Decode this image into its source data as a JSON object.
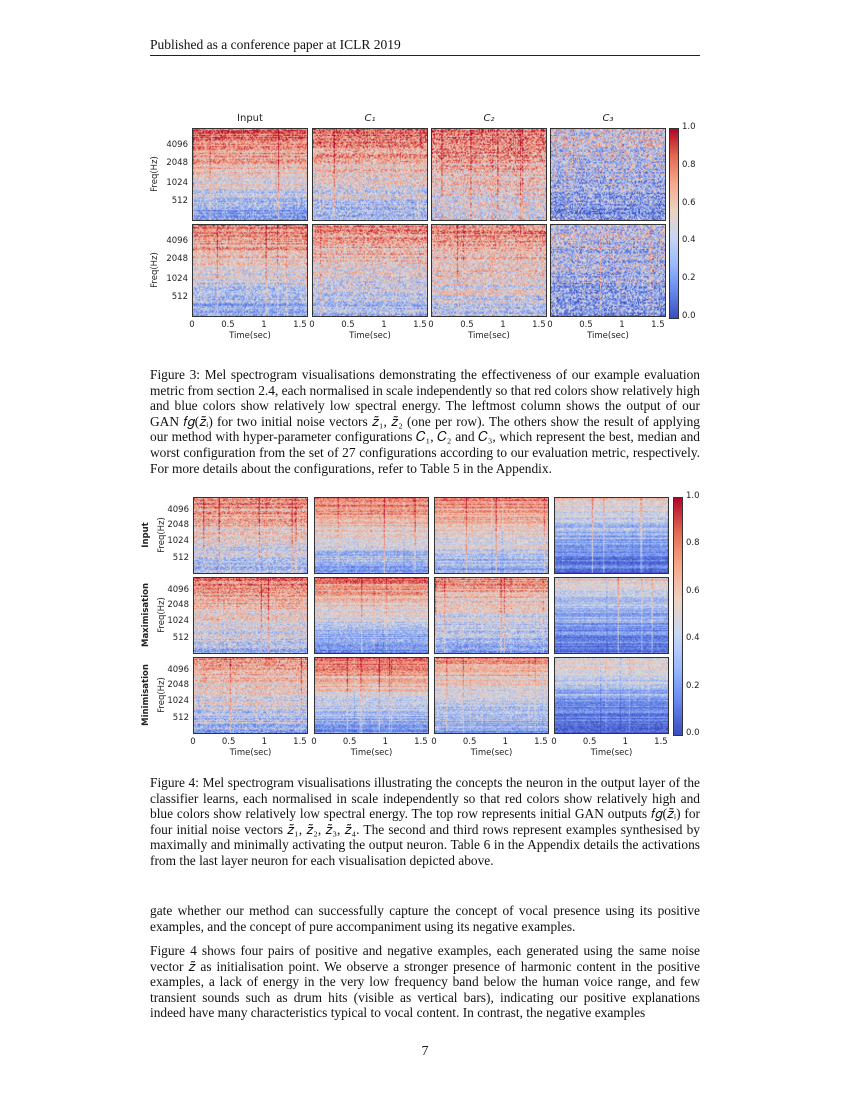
{
  "header": "Published as a conference paper at ICLR 2019",
  "figure3": {
    "column_titles": [
      "Input",
      "C₁",
      "C₂",
      "C₃"
    ],
    "y_axis_label": "Freq(Hz)",
    "y_ticks": [
      "4096",
      "2048",
      "1024",
      "512"
    ],
    "x_axis_label": "Time(sec)",
    "x_ticks": [
      "0",
      "0.5",
      "1",
      "1.5"
    ],
    "colorbar_ticks": [
      "1.0",
      "0.8",
      "0.6",
      "0.4",
      "0.2",
      "0.0"
    ],
    "colormap": [
      "#3b4cc0",
      "#dddddd",
      "#b40426"
    ],
    "caption": "Figure 3: Mel spectrogram visualisations demonstrating the effectiveness of our example evaluation metric from section 2.4, each normalised in scale independently so that red colors show relatively high and blue colors show relatively low spectral energy. The leftmost column shows the output of our GAN 𝑓𝑔(𝑧̃ᵢ) for two initial noise vectors 𝑧̃₁, 𝑧̃₂ (one per row). The others show the result of applying our method with hyper-parameter configurations 𝐶₁, 𝐶₂ and 𝐶₃, which represent the best, median and worst configuration from the set of 27 configurations according to our evaluation metric, respectively. For more details about the configurations, refer to Table 5 in the Appendix."
  },
  "figure4": {
    "row_labels": [
      "Input",
      "Maximisation",
      "Minimisation"
    ],
    "y_axis_label": "Freq(Hz)",
    "y_ticks": [
      "4096",
      "2048",
      "1024",
      "512"
    ],
    "x_axis_label": "Time(sec)",
    "x_ticks": [
      "0",
      "0.5",
      "1",
      "1.5"
    ],
    "colorbar_ticks": [
      "1.0",
      "0.8",
      "0.6",
      "0.4",
      "0.2",
      "0.0"
    ],
    "caption": "Figure 4: Mel spectrogram visualisations illustrating the concepts the neuron in the output layer of the classifier learns, each normalised in scale independently so that red colors show relatively high and blue colors show relatively low spectral energy. The top row represents initial GAN outputs 𝑓𝑔(𝑧̃ᵢ) for four initial noise vectors 𝑧̃₁, 𝑧̃₂, 𝑧̃₃, 𝑧̃₄. The second and third rows represent examples synthesised by maximally and minimally activating the output neuron. Table 6 in the Appendix details the activations from the last layer neuron for each visualisation depicted above."
  },
  "body": {
    "para1": "gate whether our method can successfully capture the concept of vocal presence using its positive examples, and the concept of pure accompaniment using its negative examples.",
    "para2": "Figure 4 shows four pairs of positive and negative examples, each generated using the same noise vector 𝑧̃ as initialisation point. We observe a stronger presence of harmonic content in the positive examples, a lack of energy in the very low frequency band below the human voice range, and few transient sounds such as drum hits (visible as vertical bars), indicating our positive explanations indeed have many characteristics typical to vocal content. In contrast, the negative examples"
  },
  "page_number": "7"
}
